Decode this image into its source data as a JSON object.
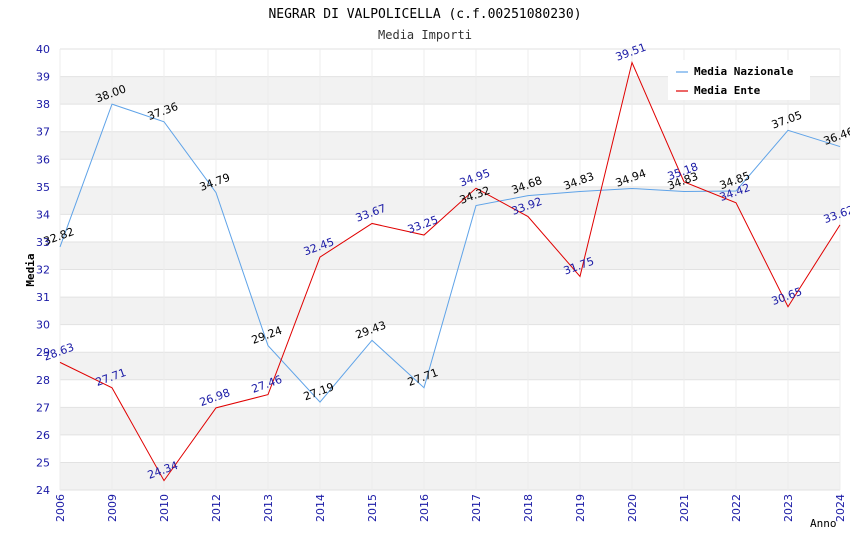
{
  "chart_data": {
    "type": "line",
    "title": "NEGRAR DI VALPOLICELLA (c.f.00251080230)",
    "subtitle": "Media Importi",
    "ylabel": "Media",
    "xlabel": "Anno",
    "ylim": [
      24,
      40
    ],
    "y_ticks": [
      24,
      25,
      26,
      27,
      28,
      29,
      30,
      31,
      32,
      33,
      34,
      35,
      36,
      37,
      38,
      39,
      40
    ],
    "categories": [
      "2006",
      "2009",
      "2010",
      "2012",
      "2013",
      "2014",
      "2015",
      "2016",
      "2017",
      "2018",
      "2019",
      "2020",
      "2021",
      "2022",
      "2023",
      "2024"
    ],
    "grid": true,
    "legend_position": "top-right",
    "series": [
      {
        "name": "Media Nazionale",
        "color": "#5fa3e8",
        "label_color": "#000000",
        "values": [
          32.82,
          38.0,
          37.36,
          34.79,
          29.24,
          27.19,
          29.43,
          27.71,
          34.32,
          34.68,
          34.83,
          34.94,
          34.83,
          34.85,
          37.05,
          36.46
        ],
        "labels": [
          "32.82",
          "38.00",
          "37.36",
          "34.79",
          "29.24",
          "27.19",
          "29.43",
          "27.71",
          "34.32",
          "34.68",
          "34.83",
          "34.94",
          "34.83",
          "34.85",
          "37.05",
          "36.46"
        ]
      },
      {
        "name": "Media Ente",
        "color": "#e00000",
        "label_color": "#1a1aa6",
        "values": [
          28.63,
          27.71,
          24.34,
          26.98,
          27.46,
          32.45,
          33.67,
          33.25,
          34.95,
          33.92,
          31.75,
          39.51,
          35.18,
          34.42,
          30.65,
          33.62
        ],
        "labels": [
          "28.63",
          "27.71",
          "24.34",
          "26.98",
          "27.46",
          "32.45",
          "33.67",
          "33.25",
          "34.95",
          "33.92",
          "31.75",
          "39.51",
          "35.18",
          "34.42",
          "30.65",
          "33.62"
        ]
      }
    ]
  }
}
